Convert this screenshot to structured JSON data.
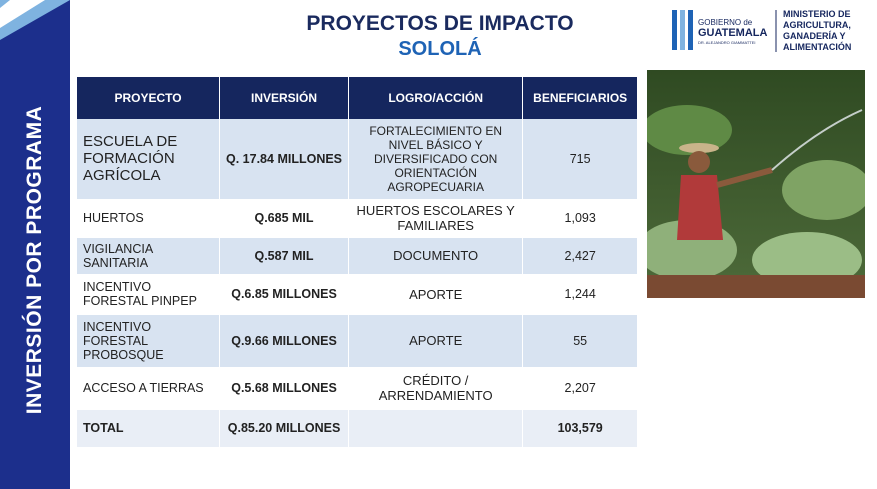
{
  "sidebar": {
    "title": "INVERSIÓN POR PROGRAMA"
  },
  "header": {
    "title": "PROYECTOS DE IMPACTO",
    "subtitle": "SOLOLÁ"
  },
  "logo": {
    "gov_line1": "GOBIERNO de",
    "gov_line2": "GUATEMALA",
    "gov_line3": "DR. ALEJANDRO GIAMMATTEI",
    "ministry": [
      "MINISTERIO DE",
      "AGRICULTURA,",
      "GANADERÍA Y",
      "ALIMENTACIÓN"
    ]
  },
  "table": {
    "columns": [
      "PROYECTO",
      "INVERSIÓN",
      "LOGRO/ACCIÓN",
      "BENEFICIARIOS"
    ],
    "rows": [
      [
        "ESCUELA DE FORMACIÓN AGRÍCOLA",
        "Q. 17.84 MILLONES",
        "FORTALECIMIENTO EN NIVEL BÁSICO Y DIVERSIFICADO CON ORIENTACIÓN AGROPECUARIA",
        "715"
      ],
      [
        "HUERTOS",
        "Q.685 MIL",
        "HUERTOS ESCOLARES Y FAMILIARES",
        "1,093"
      ],
      [
        "VIGILANCIA SANITARIA",
        "Q.587  MIL",
        "DOCUMENTO",
        "2,427"
      ],
      [
        "INCENTIVO FORESTAL PINPEP",
        "Q.6.85 MILLONES",
        "APORTE",
        "1,244"
      ],
      [
        "INCENTIVO FORESTAL PROBOSQUE",
        "Q.9.66 MILLONES",
        "APORTE",
        "55"
      ],
      [
        "ACCESO A TIERRAS",
        "Q.5.68 MILLONES",
        "CRÉDITO / ARRENDAMIENTO",
        "2,207"
      ],
      [
        "TOTAL",
        "Q.85.20 MILLONES",
        "",
        "103,579"
      ]
    ]
  }
}
